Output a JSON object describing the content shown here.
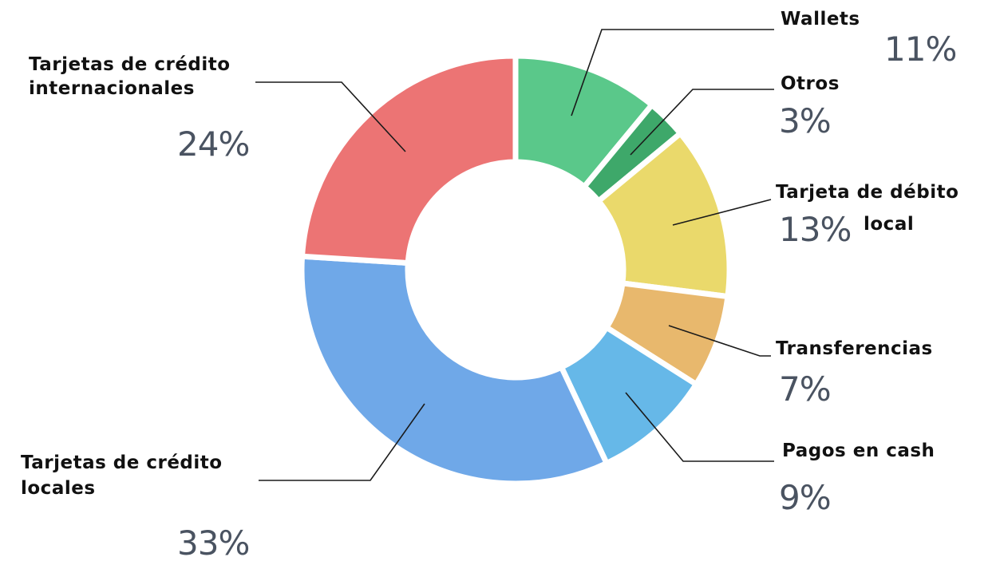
{
  "chart_data": {
    "type": "pie",
    "variant": "donut",
    "title": "",
    "series": [
      {
        "name": "Wallets",
        "name_lines": [
          "Wallets"
        ],
        "value": 11,
        "value_label": "11%",
        "color": "#5ac88a"
      },
      {
        "name": "Otros",
        "name_lines": [
          "Otros"
        ],
        "value": 3,
        "value_label": "3%",
        "color": "#3ea86a"
      },
      {
        "name": "Tarjeta de débito local",
        "name_lines": [
          "Tarjeta de débito",
          "local"
        ],
        "value": 13,
        "value_label": "13%",
        "color": "#ead96b"
      },
      {
        "name": "Transferencias",
        "name_lines": [
          "Transferencias"
        ],
        "value": 7,
        "value_label": "7%",
        "color": "#e8b86d"
      },
      {
        "name": "Pagos en cash",
        "name_lines": [
          "Pagos en cash"
        ],
        "value": 9,
        "value_label": "9%",
        "color": "#66b8e8"
      },
      {
        "name": "Tarjetas de crédito locales",
        "name_lines": [
          "Tarjetas de crédito",
          "locales"
        ],
        "value": 33,
        "value_label": "33%",
        "color": "#6fa8e8"
      },
      {
        "name": "Tarjetas de crédito internacionales",
        "name_lines": [
          "Tarjetas de crédito",
          "internacionales"
        ],
        "value": 24,
        "value_label": "24%",
        "color": "#ec7474"
      }
    ],
    "start_angle_deg": 0,
    "direction": "clockwise",
    "legend": "none",
    "labels": "outside-with-leader-lines"
  }
}
